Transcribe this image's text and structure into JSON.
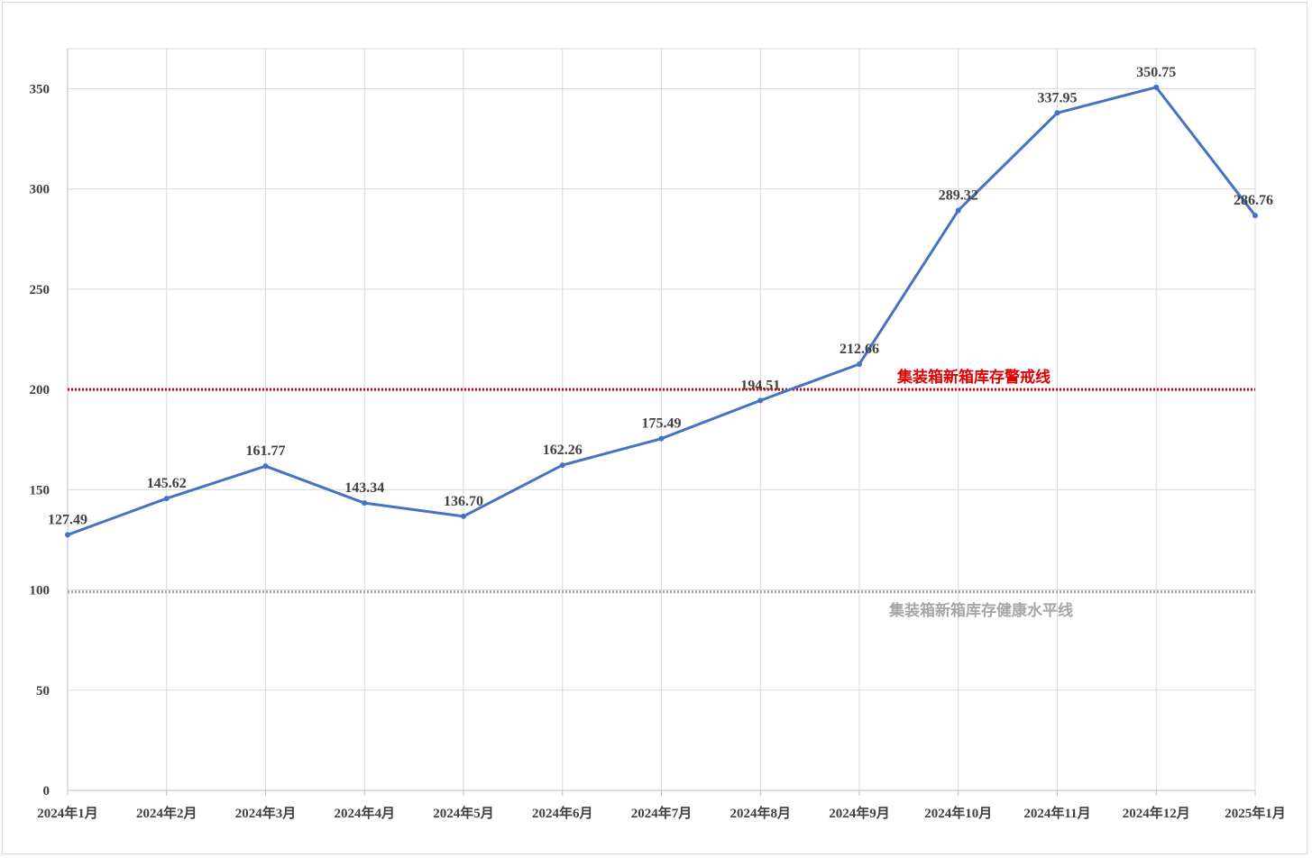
{
  "chart_data": {
    "type": "line",
    "title": "",
    "xlabel": "",
    "ylabel": "",
    "categories": [
      "2024年1月",
      "2024年2月",
      "2024年3月",
      "2024年4月",
      "2024年5月",
      "2024年6月",
      "2024年7月",
      "2024年8月",
      "2024年9月",
      "2024年10月",
      "2024年11月",
      "2024年12月",
      "2025年1月"
    ],
    "series": [
      {
        "values": [
          127.49,
          145.62,
          161.77,
          143.34,
          136.7,
          162.26,
          175.49,
          194.51,
          212.66,
          289.32,
          337.95,
          350.75,
          286.76
        ],
        "labels": [
          "127.49",
          "145.62",
          "161.77",
          "143.34",
          "136.70",
          "162.26",
          "175.49",
          "194.51",
          "212.66",
          "289.32",
          "337.95",
          "350.75",
          "286.76"
        ],
        "color": "#4472c4"
      }
    ],
    "reference_lines": [
      {
        "label": "集装箱新箱库存警戒线",
        "value": 200,
        "color": "#e00000",
        "style": "dotted"
      },
      {
        "label": "集装箱新箱库存健康水平线",
        "value": 99,
        "color": "#a6a6a6",
        "style": "dotted"
      }
    ],
    "ylim": [
      0,
      370
    ],
    "yticks": [
      "0",
      "50",
      "100",
      "150",
      "200",
      "250",
      "300",
      "350"
    ],
    "grid": true,
    "legend": "none"
  }
}
